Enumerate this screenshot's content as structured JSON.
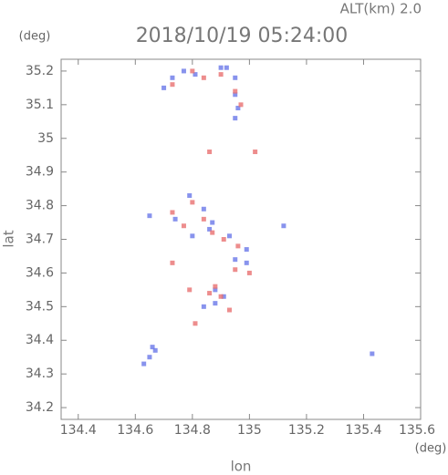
{
  "chart_data": {
    "type": "scatter",
    "title": "2018/10/19 05:24:00",
    "subtitle": "ALT(km) 2.0",
    "x_label": "lon",
    "y_label": "lat",
    "x_unit": "(deg)",
    "y_unit": "(deg)",
    "xlim": [
      134.34,
      135.6
    ],
    "ylim": [
      34.165,
      35.235
    ],
    "xticks": [
      134.4,
      134.6,
      134.8,
      135.0,
      135.2,
      135.4,
      135.6
    ],
    "yticks": [
      34.2,
      34.3,
      34.4,
      34.5,
      34.6,
      34.7,
      34.8,
      34.9,
      35.0,
      35.1,
      35.2
    ],
    "grid": false,
    "series": [
      {
        "color": "#6a78e8",
        "x": [
          134.7,
          134.73,
          134.77,
          134.81,
          134.9,
          134.92,
          134.95,
          134.95,
          134.96,
          134.95,
          134.65,
          134.74,
          134.79,
          134.84,
          134.87,
          134.8,
          134.86,
          134.93,
          134.99,
          134.95,
          134.99,
          134.88,
          134.91,
          134.88,
          134.84,
          134.63,
          134.65,
          134.67,
          134.66,
          135.43,
          135.12
        ],
        "y": [
          35.15,
          35.18,
          35.2,
          35.19,
          35.21,
          35.21,
          35.18,
          35.13,
          35.09,
          35.06,
          34.77,
          34.76,
          34.83,
          34.79,
          34.75,
          34.71,
          34.73,
          34.71,
          34.67,
          34.64,
          34.63,
          34.51,
          34.53,
          34.55,
          34.5,
          34.33,
          34.35,
          34.37,
          34.38,
          34.36,
          34.74
        ]
      },
      {
        "color": "#e87070",
        "x": [
          134.73,
          134.8,
          134.84,
          134.9,
          134.95,
          134.97,
          134.86,
          135.02,
          134.73,
          134.77,
          134.8,
          134.84,
          134.87,
          134.91,
          134.96,
          135.0,
          134.73,
          134.95,
          134.9,
          134.86,
          134.93,
          134.81,
          134.79,
          134.88
        ],
        "y": [
          35.16,
          35.2,
          35.18,
          35.19,
          35.14,
          35.1,
          34.96,
          34.96,
          34.78,
          34.74,
          34.81,
          34.76,
          34.72,
          34.7,
          34.68,
          34.6,
          34.63,
          34.61,
          34.53,
          34.54,
          34.49,
          34.45,
          34.55,
          34.56
        ]
      }
    ]
  }
}
